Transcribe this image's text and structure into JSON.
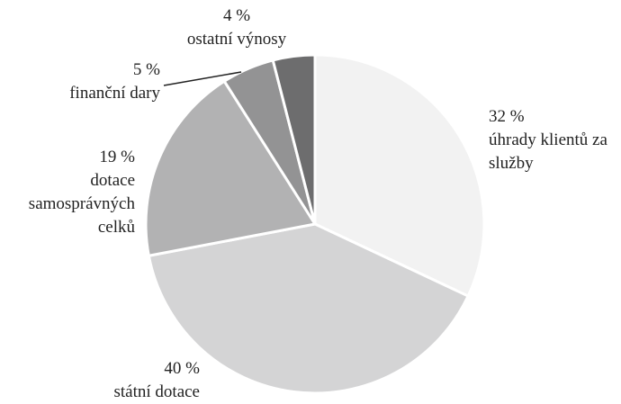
{
  "chart_data": {
    "type": "pie",
    "categories": [
      "úhrady klientů za služby",
      "státní dotace",
      "dotace samosprávných celků",
      "finanční dary",
      "ostatní výnosy"
    ],
    "values": [
      32,
      40,
      19,
      5,
      4
    ],
    "value_labels": [
      "32 %",
      "40 %",
      "19 %",
      "5 %",
      "4 %"
    ],
    "colors": [
      "#f2f2f2",
      "#d4d4d5",
      "#b2b2b3",
      "#939394",
      "#6d6d6e"
    ]
  }
}
